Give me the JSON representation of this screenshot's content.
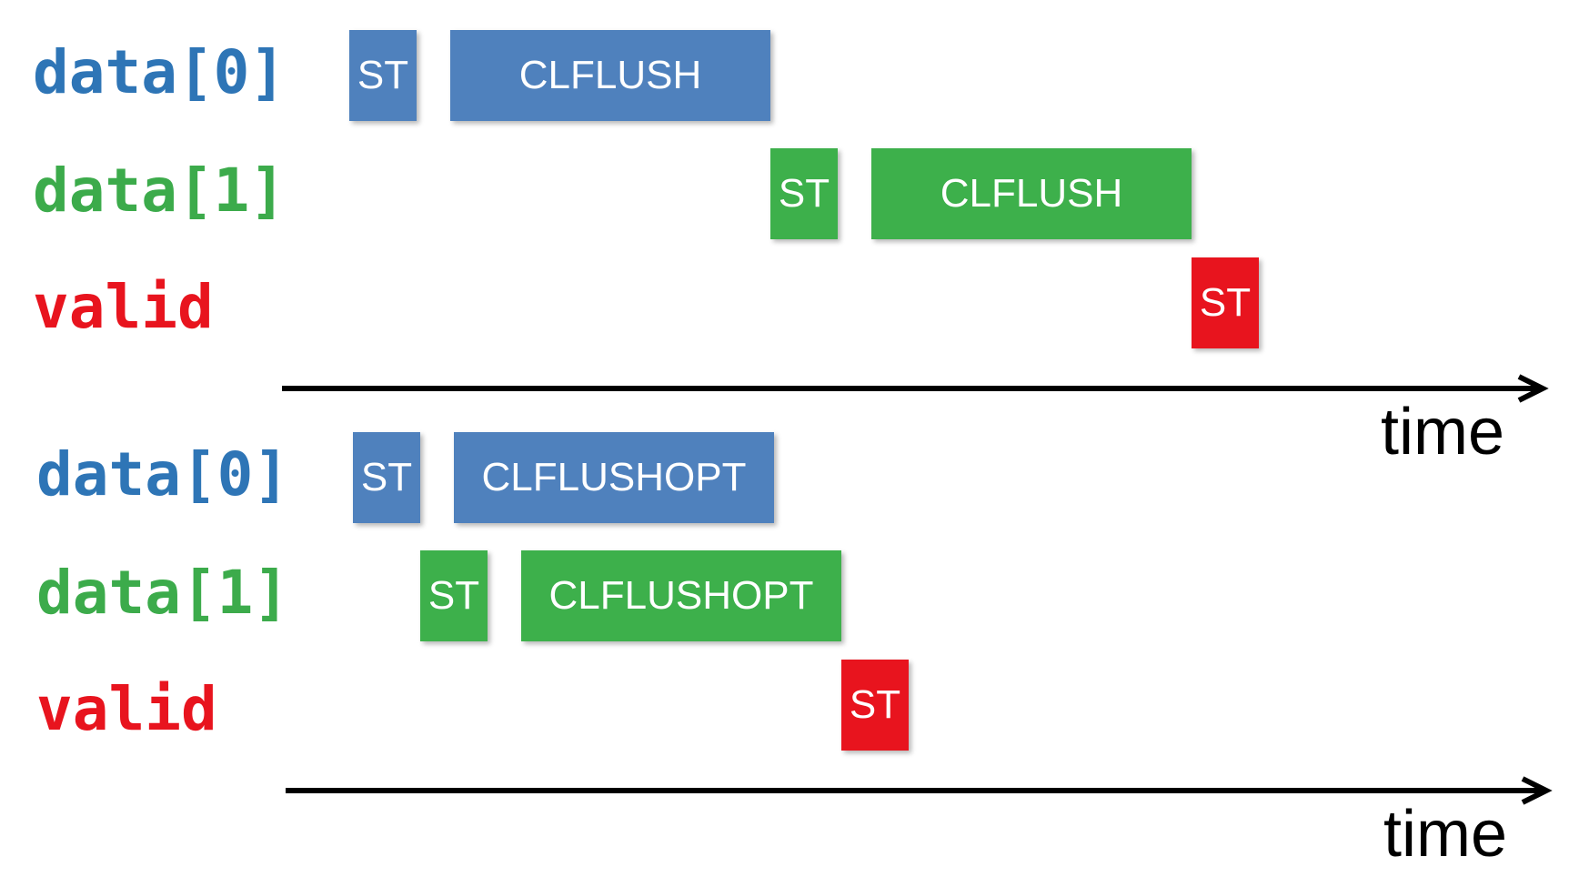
{
  "colors": {
    "data0": "#2E75B6",
    "data1": "#3CAB4B",
    "valid": "#E8141E",
    "op_blue": "#4F81BD",
    "op_green": "#3DB04B",
    "op_red": "#E8141E",
    "axis": "#000000"
  },
  "top": {
    "rows": {
      "data0": "data[0]",
      "data1": "data[1]",
      "valid": "valid"
    },
    "ops": {
      "data0_st": "ST",
      "data0_flush": "CLFLUSH",
      "data1_st": "ST",
      "data1_flush": "CLFLUSH",
      "valid_st": "ST"
    },
    "axis_label": "time"
  },
  "bottom": {
    "rows": {
      "data0": "data[0]",
      "data1": "data[1]",
      "valid": "valid"
    },
    "ops": {
      "data0_st": "ST",
      "data0_flush": "CLFLUSHOPT",
      "data1_st": "ST",
      "data1_flush": "CLFLUSHOPT",
      "valid_st": "ST"
    },
    "axis_label": "time"
  }
}
